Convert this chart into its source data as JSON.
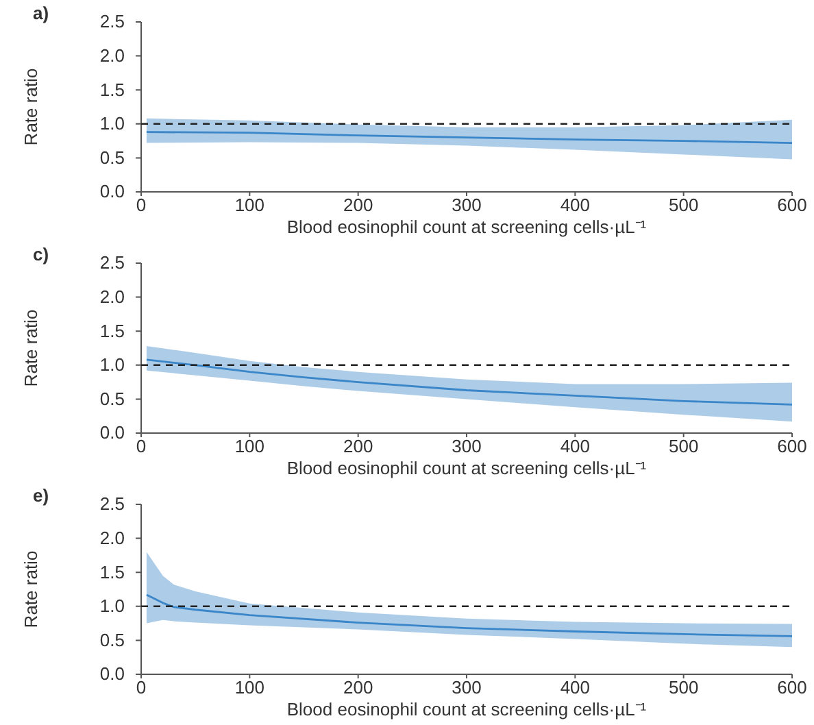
{
  "chart_data": [
    {
      "type": "line",
      "title": "a)",
      "xlabel": "Blood eosinophil count at screening cells·µL⁻¹",
      "ylabel": "Rate ratio",
      "xlim": [
        0,
        600
      ],
      "xticks": [
        0,
        100,
        200,
        300,
        400,
        500,
        600
      ],
      "ylim": [
        0,
        2.5
      ],
      "yticks": [
        {
          "value": 0,
          "label": "0.0"
        },
        0.5,
        {
          "value": 1,
          "label": "1.0"
        },
        1.5,
        {
          "value": 2,
          "label": "2.0"
        },
        2.5
      ],
      "ref_lines": [
        {
          "axis": "y",
          "value": 1,
          "color": "#222222",
          "line_style": "dashed"
        }
      ],
      "series": [
        {
          "color": "#3a86c8",
          "x": [
            5,
            100,
            200,
            300,
            400,
            500,
            600
          ],
          "values": [
            0.88,
            0.87,
            0.83,
            0.8,
            0.77,
            0.75,
            0.72
          ],
          "lower": [
            0.72,
            0.73,
            0.72,
            0.68,
            0.62,
            0.55,
            0.48
          ],
          "upper": [
            1.08,
            1.05,
            0.99,
            0.95,
            0.95,
            0.98,
            1.06
          ]
        }
      ]
    },
    {
      "type": "line",
      "title": "c)",
      "xlabel": "Blood eosinophil count at screening cells·µL⁻¹",
      "ylabel": "Rate ratio",
      "xlim": [
        0,
        600
      ],
      "xticks": [
        0,
        100,
        200,
        300,
        400,
        500,
        600
      ],
      "ylim": [
        0,
        2.5
      ],
      "yticks": [
        {
          "value": 0,
          "label": "0.0"
        },
        0.5,
        {
          "value": 1,
          "label": "1.0"
        },
        1.5,
        {
          "value": 2,
          "label": "2.0"
        },
        2.5
      ],
      "ref_lines": [
        {
          "axis": "y",
          "value": 1,
          "color": "#222222",
          "line_style": "dashed"
        }
      ],
      "series": [
        {
          "color": "#3a86c8",
          "x": [
            5,
            50,
            100,
            150,
            200,
            300,
            400,
            500,
            600
          ],
          "values": [
            1.08,
            1.0,
            0.9,
            0.82,
            0.75,
            0.63,
            0.55,
            0.47,
            0.42
          ],
          "lower": [
            0.92,
            0.85,
            0.77,
            0.69,
            0.62,
            0.5,
            0.38,
            0.27,
            0.17
          ],
          "upper": [
            1.28,
            1.18,
            1.06,
            0.97,
            0.9,
            0.79,
            0.72,
            0.72,
            0.74
          ]
        }
      ]
    },
    {
      "type": "line",
      "title": "e)",
      "xlabel": "Blood eosinophil count at screening cells·µL⁻¹",
      "ylabel": "Rate ratio",
      "xlim": [
        0,
        600
      ],
      "xticks": [
        0,
        100,
        200,
        300,
        400,
        500,
        600
      ],
      "ylim": [
        0,
        2.5
      ],
      "yticks": [
        {
          "value": 0,
          "label": "0.0"
        },
        0.5,
        {
          "value": 1,
          "label": "1.0"
        },
        1.5,
        {
          "value": 2,
          "label": "2.0"
        },
        2.5
      ],
      "ref_lines": [
        {
          "axis": "y",
          "value": 1,
          "color": "#222222",
          "line_style": "dashed"
        }
      ],
      "series": [
        {
          "color": "#3a86c8",
          "x": [
            5,
            20,
            30,
            50,
            100,
            200,
            300,
            400,
            500,
            600
          ],
          "values": [
            1.17,
            1.05,
            0.99,
            0.95,
            0.87,
            0.76,
            0.68,
            0.63,
            0.59,
            0.56
          ],
          "lower": [
            0.75,
            0.8,
            0.78,
            0.76,
            0.72,
            0.66,
            0.58,
            0.52,
            0.45,
            0.4
          ],
          "upper": [
            1.8,
            1.45,
            1.32,
            1.22,
            1.04,
            0.91,
            0.82,
            0.77,
            0.75,
            0.74
          ]
        }
      ]
    }
  ]
}
